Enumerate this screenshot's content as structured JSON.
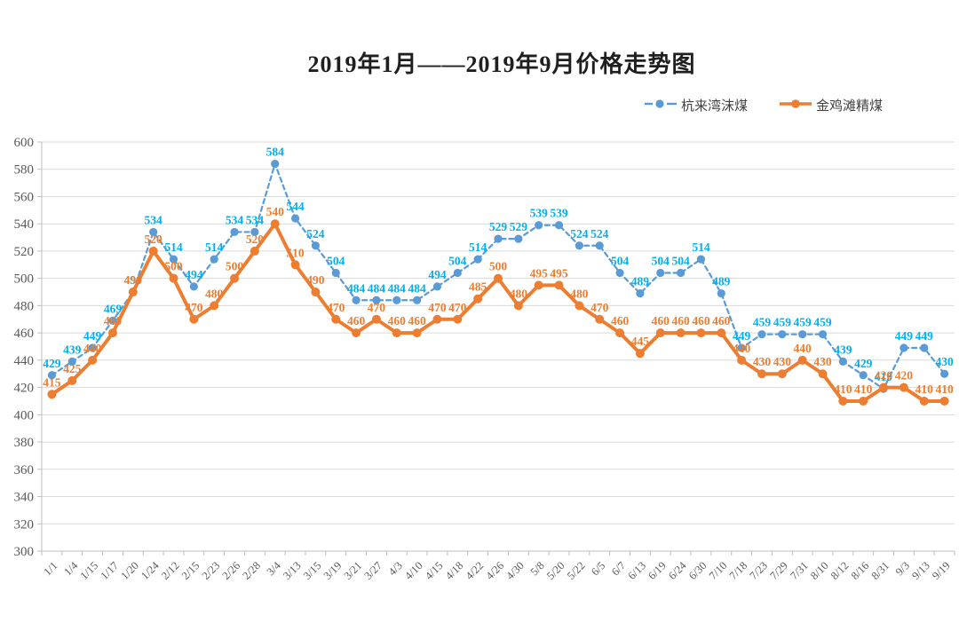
{
  "title": "2019年1月——2019年9月价格走势图",
  "chart_data": {
    "type": "line",
    "title": "2019年1月——2019年9月价格走势图",
    "categories": [
      "1/1",
      "1/4",
      "1/15",
      "1/17",
      "1/20",
      "1/24",
      "2/12",
      "2/15",
      "2/23",
      "2/26",
      "2/28",
      "3/4",
      "3/13",
      "3/15",
      "3/19",
      "3/21",
      "3/27",
      "4/3",
      "4/10",
      "4/15",
      "4/18",
      "4/22",
      "4/26",
      "4/30",
      "5/8",
      "5/20",
      "5/22",
      "6/5",
      "6/7",
      "6/13",
      "6/19",
      "6/24",
      "6/30",
      "7/10",
      "7/18",
      "7/23",
      "7/29",
      "7/31",
      "8/10",
      "8/12",
      "8/16",
      "8/31",
      "9/3",
      "9/13",
      "9/19"
    ],
    "series": [
      {
        "name": "杭来湾沫煤",
        "line_style": "dashed",
        "line_color": "#5B9BD5",
        "label_color": "#00B0F0",
        "values": [
          429,
          439,
          449,
          469,
          490,
          534,
          514,
          494,
          514,
          534,
          534,
          584,
          544,
          524,
          504,
          484,
          484,
          484,
          484,
          494,
          504,
          514,
          529,
          529,
          539,
          539,
          524,
          524,
          504,
          489,
          504,
          504,
          514,
          489,
          449,
          459,
          459,
          459,
          459,
          439,
          429,
          419,
          449,
          449,
          430
        ]
      },
      {
        "name": "金鸡滩精煤",
        "line_style": "solid",
        "line_color": "#ED7D31",
        "label_color": "#ED7D31",
        "values": [
          415,
          425,
          440,
          460,
          490,
          520,
          500,
          470,
          480,
          500,
          520,
          540,
          510,
          490,
          470,
          460,
          470,
          460,
          460,
          470,
          470,
          485,
          500,
          480,
          495,
          495,
          480,
          470,
          460,
          445,
          460,
          460,
          460,
          460,
          440,
          430,
          430,
          440,
          430,
          410,
          410,
          420,
          420,
          410,
          410
        ]
      }
    ],
    "xlabel": "",
    "ylabel": "",
    "ylim": [
      300,
      600
    ],
    "ytick_step": 20,
    "yticks": [
      300,
      320,
      340,
      360,
      380,
      400,
      420,
      440,
      460,
      480,
      500,
      520,
      540,
      560,
      580,
      600
    ],
    "grid": true,
    "legend_position": "top-right",
    "grid_color": "#D9D9D9",
    "axis_color": "#BFBFBF",
    "tick_label_color": "#595959",
    "data_labels": true
  }
}
